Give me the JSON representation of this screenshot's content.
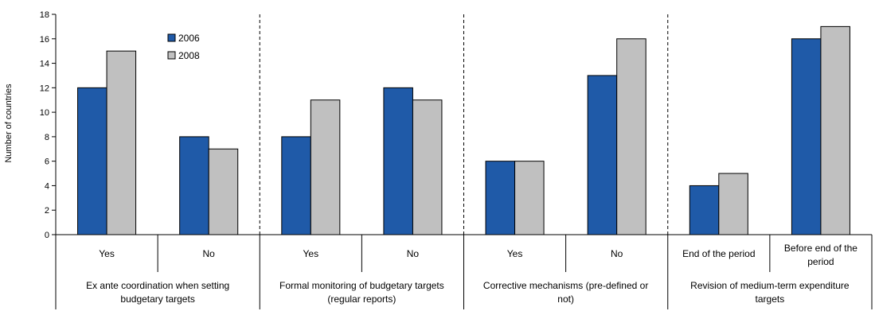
{
  "chart_data": {
    "type": "bar",
    "ylabel": "Number of countries",
    "ylim": [
      0,
      18
    ],
    "yticks": [
      "0",
      "2",
      "4",
      "6",
      "8",
      "10",
      "12",
      "14",
      "16",
      "18"
    ],
    "grid": false,
    "legend_position": "top-left",
    "series": [
      {
        "name": "2006",
        "color": "#1F5AA8",
        "values": [
          12,
          8,
          8,
          12,
          6,
          13,
          4,
          16
        ]
      },
      {
        "name": "2008",
        "color": "#C0C0C0",
        "values": [
          15,
          7,
          11,
          11,
          6,
          16,
          5,
          17
        ]
      }
    ],
    "categories": [
      "Yes",
      "No",
      "Yes",
      "No",
      "Yes",
      "No",
      "End of the period",
      "Before end of the period"
    ],
    "category_lines": [
      [
        "Yes"
      ],
      [
        "No"
      ],
      [
        "Yes"
      ],
      [
        "No"
      ],
      [
        "Yes"
      ],
      [
        "No"
      ],
      [
        "End of the period"
      ],
      [
        "Before end of the",
        "period"
      ]
    ],
    "groups": [
      {
        "lines": [
          "Ex ante coordination when setting",
          "budgetary targets"
        ]
      },
      {
        "lines": [
          "Formal monitoring of budgetary targets",
          "(regular reports)"
        ]
      },
      {
        "lines": [
          "Corrective mechanisms (pre-defined or",
          "not)"
        ]
      },
      {
        "lines": [
          "Revision of medium-term expenditure",
          "targets"
        ]
      }
    ]
  }
}
